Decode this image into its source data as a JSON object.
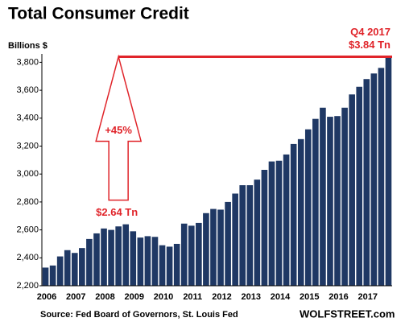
{
  "chart_data": {
    "type": "bar",
    "title": "Total Consumer Credit",
    "y_label": "Billions $",
    "source": "Source: Fed Board of Governors, St. Louis Fed",
    "watermark": "WOLFSTREET.com",
    "annotations": {
      "end_period": "Q4 2017",
      "end_value": "$3.84 Tn",
      "change": "+45%",
      "start_value": "$2.64 Tn"
    },
    "reference_line": 3840,
    "color": "#1f3864",
    "categories": [
      "2006",
      null,
      null,
      null,
      "2007",
      null,
      null,
      null,
      "2008",
      null,
      null,
      null,
      "2009",
      null,
      null,
      null,
      "2010",
      null,
      null,
      null,
      "2011",
      null,
      null,
      null,
      "2012",
      null,
      null,
      null,
      "2013",
      null,
      null,
      null,
      "2014",
      null,
      null,
      null,
      "2015",
      null,
      null,
      null,
      "2016",
      null,
      null,
      null,
      "2017",
      null,
      null,
      null
    ],
    "values": [
      2330,
      2345,
      2410,
      2455,
      2435,
      2470,
      2535,
      2575,
      2610,
      2600,
      2625,
      2640,
      2590,
      2545,
      2555,
      2550,
      2490,
      2480,
      2500,
      2645,
      2630,
      2650,
      2720,
      2750,
      2745,
      2800,
      2860,
      2920,
      2920,
      2960,
      3030,
      3090,
      3095,
      3140,
      3215,
      3250,
      3320,
      3395,
      3475,
      3410,
      3415,
      3475,
      3570,
      3625,
      3680,
      3720,
      3760,
      3840
    ],
    "ylim": [
      2200,
      3860
    ],
    "yticks": [
      {
        "value": 2200,
        "label": "2,200"
      },
      {
        "value": 2400,
        "label": "2,400"
      },
      {
        "value": 2600,
        "label": "2,600"
      },
      {
        "value": 2800,
        "label": "2,800"
      },
      {
        "value": 3000,
        "label": "3,000"
      },
      {
        "value": 3200,
        "label": "3,200"
      },
      {
        "value": 3400,
        "label": "3,400"
      },
      {
        "value": 3600,
        "label": "3,600"
      },
      {
        "value": 3800,
        "label": "3,800"
      }
    ]
  }
}
